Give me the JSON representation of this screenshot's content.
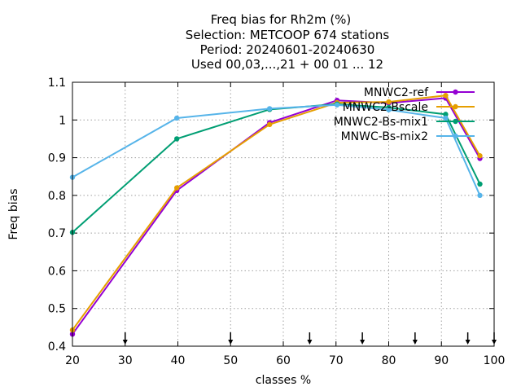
{
  "chart_data": {
    "type": "line",
    "title_lines": [
      "Freq bias  for Rh2m (%)",
      "Selection: METCOOP    674 stations",
      "Period: 20240601-20240630",
      "Used 00,03,...,21 + 00 01 ... 12"
    ],
    "xlabel": "classes %",
    "ylabel": "Freq bias",
    "xlim": [
      20,
      100
    ],
    "ylim": [
      0.4,
      1.1
    ],
    "xticks": [
      20,
      30,
      40,
      50,
      60,
      70,
      80,
      90,
      100
    ],
    "yticks": [
      0.4,
      0.5,
      0.6,
      0.7,
      0.8,
      0.9,
      1,
      1.1
    ],
    "ytick_labels": [
      "0.4",
      "0.5",
      "0.6",
      "0.7",
      "0.8",
      "0.9",
      "1",
      "1.1"
    ],
    "grid": true,
    "legend_position": "top-right",
    "class_limit_markers": [
      30,
      50,
      65,
      75,
      85,
      95,
      100
    ],
    "series": [
      {
        "name": "MNWC2-ref",
        "color": "#9400d3",
        "x": [
          20,
          39.8,
          57.4,
          70.2,
          80,
          90.8,
          97.3
        ],
        "y": [
          0.432,
          0.813,
          0.993,
          1.052,
          1.045,
          1.058,
          0.898
        ]
      },
      {
        "name": "MNWC2-Bscale",
        "color": "#e69f00",
        "x": [
          20,
          39.8,
          57.4,
          70.2,
          80,
          90.8,
          97.3
        ],
        "y": [
          0.443,
          0.82,
          0.988,
          1.046,
          1.048,
          1.065,
          0.905
        ]
      },
      {
        "name": "MNWC2-Bs-mix1",
        "color": "#009e73",
        "x": [
          20,
          39.8,
          57.4,
          70.2,
          80,
          90.8,
          97.3
        ],
        "y": [
          0.702,
          0.95,
          1.028,
          1.042,
          1.033,
          1.015,
          0.83
        ]
      },
      {
        "name": "MNWC-Bs-mix2",
        "color": "#56b4e9",
        "x": [
          20,
          39.8,
          57.4,
          70.2,
          80,
          90.8,
          97.3
        ],
        "y": [
          0.848,
          1.005,
          1.03,
          1.04,
          1.027,
          1.005,
          0.8
        ]
      }
    ]
  }
}
